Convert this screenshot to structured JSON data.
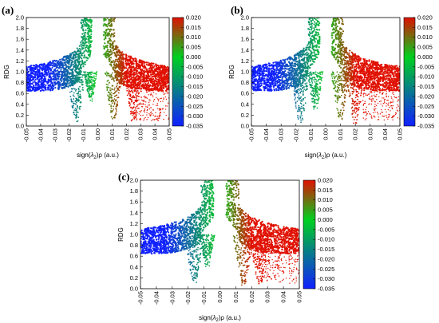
{
  "chart_data": [
    {
      "panel_label": "(a)",
      "type": "scatter",
      "xlabel_parts": [
        "sign(",
        "λ",
        "2",
        ")ρ (a.u.)"
      ],
      "ylabel": "RDG",
      "xlim": [
        -0.05,
        0.05
      ],
      "ylim": [
        0.0,
        2.0
      ],
      "xticks": [
        "-0.05",
        "-0.04",
        "-0.03",
        "-0.02",
        "-0.01",
        "0.00",
        "0.01",
        "0.02",
        "0.03",
        "0.04",
        "0.05"
      ],
      "yticks": [
        "0.0",
        "0.2",
        "0.4",
        "0.6",
        "0.8",
        "1.0",
        "1.2",
        "1.4",
        "1.6",
        "1.8",
        "2.0"
      ],
      "colorbar": {
        "range": [
          -0.035,
          0.02
        ],
        "ticks": [
          "0.020",
          "0.015",
          "0.010",
          "0.005",
          "0.000",
          "-0.005",
          "-0.010",
          "-0.015",
          "-0.020",
          "-0.025",
          "-0.030",
          "-0.035"
        ],
        "colors": [
          "#1020ff",
          "#00d020",
          "#e01000"
        ]
      },
      "cloud": {
        "arms_rdg": [
          [
            -0.05,
            1.15
          ],
          [
            -0.04,
            1.3
          ],
          [
            -0.03,
            1.5
          ],
          [
            -0.02,
            1.75
          ],
          [
            -0.012,
            2.0
          ]
        ],
        "spikes": [
          {
            "x": -0.015,
            "min_rdg": 0.05
          },
          {
            "x": -0.005,
            "min_rdg": 0.45
          },
          {
            "x": 0.011,
            "min_rdg": 0.1
          },
          {
            "x": 0.025,
            "min_rdg": 0.05
          }
        ]
      }
    },
    {
      "panel_label": "(b)",
      "type": "scatter",
      "xlabel_parts": [
        "sign(",
        "λ",
        "2",
        ")ρ (a.u.)"
      ],
      "ylabel": "RDG",
      "xlim": [
        -0.05,
        0.05
      ],
      "ylim": [
        0.0,
        2.0
      ],
      "xticks": [
        "-0.05",
        "-0.04",
        "-0.03",
        "-0.02",
        "-0.01",
        "0.00",
        "0.01",
        "0.02",
        "0.03",
        "0.04",
        "0.05"
      ],
      "yticks": [
        "0.0",
        "0.2",
        "0.4",
        "0.6",
        "0.8",
        "1.0",
        "1.2",
        "1.4",
        "1.6",
        "1.8",
        "2.0"
      ],
      "colorbar": {
        "range": [
          -0.035,
          0.02
        ],
        "ticks": [
          "0.020",
          "0.015",
          "0.010",
          "0.005",
          "0.000",
          "-0.005",
          "-0.010",
          "-0.015",
          "-0.020",
          "-0.025",
          "-0.030",
          "-0.035"
        ],
        "colors": [
          "#1020ff",
          "#00d020",
          "#e01000"
        ]
      },
      "cloud": {
        "arms_rdg": [
          [
            -0.05,
            1.15
          ],
          [
            -0.04,
            1.3
          ],
          [
            -0.03,
            1.5
          ],
          [
            -0.02,
            1.75
          ],
          [
            -0.012,
            2.0
          ]
        ],
        "spikes": [
          {
            "x": -0.017,
            "min_rdg": 0.05
          },
          {
            "x": -0.007,
            "min_rdg": 0.3
          },
          {
            "x": 0.01,
            "min_rdg": 0.1
          },
          {
            "x": 0.02,
            "min_rdg": 0.05
          }
        ]
      }
    },
    {
      "panel_label": "(c)",
      "type": "scatter",
      "xlabel_parts": [
        "sign(",
        "λ",
        "2",
        ")ρ (a.u.)"
      ],
      "ylabel": "RDG",
      "xlim": [
        -0.05,
        0.05
      ],
      "ylim": [
        0.0,
        2.0
      ],
      "xticks": [
        "-0.05",
        "-0.04",
        "-0.03",
        "-0.02",
        "-0.01",
        "0.00",
        "0.01",
        "0.02",
        "0.03",
        "0.04",
        "0.05"
      ],
      "yticks": [
        "0.0",
        "0.2",
        "0.4",
        "0.6",
        "0.8",
        "1.0",
        "1.2",
        "1.4",
        "1.6",
        "1.8",
        "2.0"
      ],
      "colorbar": {
        "range": [
          -0.035,
          0.02
        ],
        "ticks": [
          "0.020",
          "0.015",
          "0.010",
          "0.005",
          "0.000",
          "-0.005",
          "-0.010",
          "-0.015",
          "-0.020",
          "-0.025",
          "-0.030",
          "-0.035"
        ],
        "colors": [
          "#1020ff",
          "#00d020",
          "#e01000"
        ]
      },
      "cloud": {
        "arms_rdg": [
          [
            -0.05,
            1.15
          ],
          [
            -0.04,
            1.3
          ],
          [
            -0.03,
            1.5
          ],
          [
            -0.02,
            1.75
          ],
          [
            -0.012,
            2.0
          ]
        ],
        "spikes": [
          {
            "x": -0.016,
            "min_rdg": 0.1
          },
          {
            "x": -0.008,
            "min_rdg": 0.4
          },
          {
            "x": 0.015,
            "min_rdg": 0.05
          },
          {
            "x": 0.025,
            "min_rdg": 0.05
          }
        ]
      }
    }
  ]
}
